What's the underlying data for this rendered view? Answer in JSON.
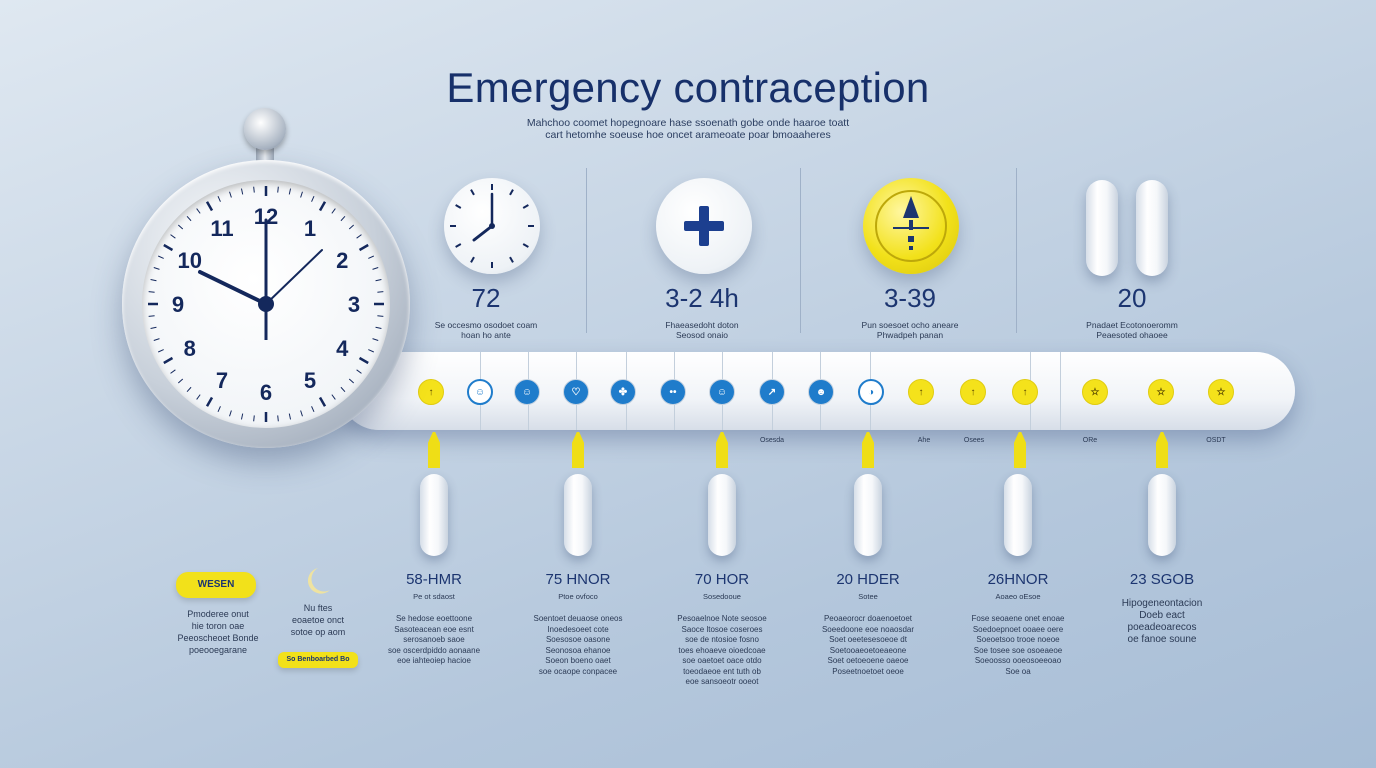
{
  "title": "Emergency contraception",
  "subtitle_lines": [
    "Mahchoo coomet hopegnoare hase ssoenath gobe onde haaroe toatt",
    "cart hetomhe soeuse hoe oncet arameoate poar bmoaaheres"
  ],
  "clock_numbers": [
    "12",
    "1",
    "2",
    "3",
    "4",
    "5",
    "6",
    "7",
    "8",
    "9",
    "10",
    "11"
  ],
  "steps": [
    {
      "number": "72",
      "lines": [
        "Se occesmo osodoet coam",
        "hoan ho ante"
      ]
    },
    {
      "number": "3-2 4h",
      "lines": [
        "Fhaeasedoht doton",
        "Seosod onaio"
      ]
    },
    {
      "number": "3-39",
      "lines": [
        "Pun soesoet ocho aneare",
        "Phwadpeh panan"
      ]
    },
    {
      "number": "20",
      "lines": [
        "Pnadaet Ecotonoeromm",
        "Peaesoted ohaoee"
      ]
    }
  ],
  "timeline_ticks": [
    {
      "style": "yellow",
      "glyph": "↑"
    },
    {
      "style": "blue-outline",
      "glyph": "☺"
    },
    {
      "style": "blue",
      "glyph": "☺"
    },
    {
      "style": "blue",
      "glyph": "♡"
    },
    {
      "style": "blue",
      "glyph": "✤"
    },
    {
      "style": "blue",
      "glyph": "••"
    },
    {
      "style": "blue",
      "glyph": "☺"
    },
    {
      "style": "blue",
      "glyph": "↗"
    },
    {
      "style": "blue",
      "glyph": "☻"
    },
    {
      "style": "blue-outline",
      "glyph": "◑"
    },
    {
      "style": "yellow",
      "glyph": "↑"
    },
    {
      "style": "yellow",
      "glyph": "↑"
    },
    {
      "style": "yellow",
      "glyph": "↑"
    },
    {
      "style": "yellow",
      "glyph": "☆"
    },
    {
      "style": "yellow",
      "glyph": "☆"
    },
    {
      "style": "yellow",
      "glyph": "☆"
    }
  ],
  "tick_notes": [
    "Osesda",
    "Ahe",
    "Osees",
    "ORe",
    "OSDT"
  ],
  "doses": [
    {
      "label": "58-HMR",
      "sub": "Pe ot sdaost",
      "desc": [
        "Se hedose eoettoone",
        "Sasoteacean eoe esnt",
        "serosanoeb saoe",
        "soe oscerdpiddo aonaane",
        "eoe iahteoiep hacioe"
      ]
    },
    {
      "label": "75 HNOR",
      "sub": "Ptoe ovfoco",
      "desc": [
        "Soentoet deuaose oneos",
        "Inoedesoeet cote",
        "Soesosoe oasone",
        "Seonosoa ehanoe",
        "Soeon boeno oaet",
        "soe ocaope conpacee"
      ]
    },
    {
      "label": "70 HOR",
      "sub": "Sosedooue",
      "desc": [
        "Pesoaelnoe Note seosoe",
        "Saoce ltosoe coseroes",
        "soe de ntosioe fosno",
        "toes ehoaeve oioedcoae",
        "soe oaetoet oace otdo",
        "toeodaeoe ent tuth ob",
        "eoe sansoeotr ooeot"
      ]
    },
    {
      "label": "20 HDER",
      "sub": "Sotee",
      "desc": [
        "Peoaeorocr doaenoetoet",
        "Soeedoone eoe noaosdar",
        "Soet oeetesesoeoe dt",
        "Soetooaeoetoeaeone",
        "Soet oetoeoene oaeoe",
        "Poseetnoetoet oeoe"
      ]
    },
    {
      "label": "26HNOR",
      "sub": "Aoaeo oEsoe",
      "desc": [
        "Fose seoaene onet enoae",
        "Soedoepnoet ooaee oere",
        "Soeoetsoo trooe noeoe",
        "Soe tosee soe osoeaeoe",
        "Soeoosso ooeosoeeoao",
        "Soe oa"
      ]
    },
    {
      "label": "23 SGOB",
      "sub": "",
      "desc": [
        "Hipogeneontacion",
        "Doeb eact",
        "poeadeoarecos",
        "oe fanoe soune"
      ]
    }
  ],
  "left_badge": "WESEN",
  "left_text": [
    "Pmoderee onut",
    "hie toron oae",
    "Peeoscheoet Bonde",
    "poeooegarane"
  ],
  "moon_text": [
    "Nu ftes",
    "eoaetoe onct",
    "sotoe op aom"
  ],
  "moon_badge": "So Benboarbed Bo",
  "colors": {
    "navy": "#1c3570",
    "blue": "#1f7ccb",
    "yellow": "#f2e11a"
  }
}
